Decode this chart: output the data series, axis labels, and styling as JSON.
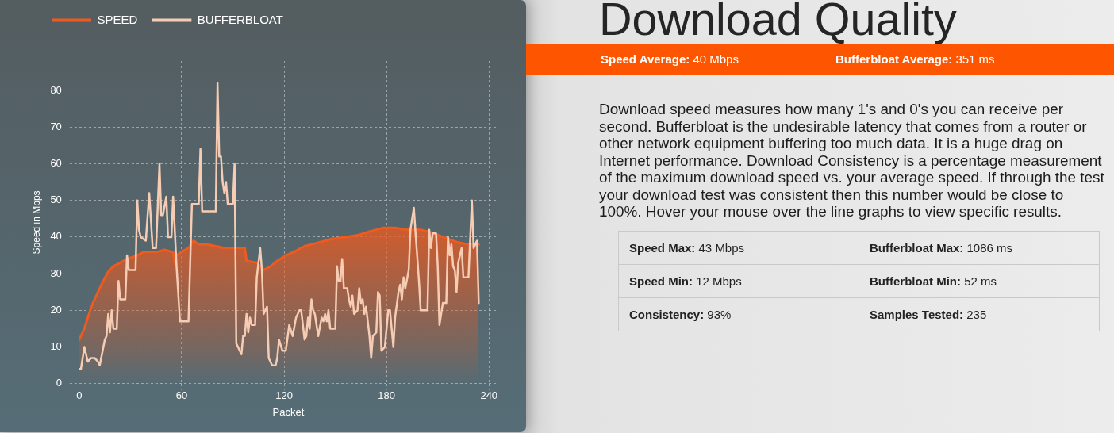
{
  "chart_data": [
    {
      "type": "line",
      "xlabel": "Packet",
      "ylabel": "Speed in Mbps",
      "xlim": [
        0,
        245
      ],
      "xticks": [
        0,
        60,
        120,
        180,
        240
      ],
      "ylim": [
        0,
        88
      ],
      "yticks": [
        0,
        10,
        20,
        30,
        40,
        50,
        60,
        70,
        80
      ],
      "grid": true,
      "legend": "top left",
      "series": [
        {
          "name": "SPEED",
          "type": "area",
          "color": "#ef5a1e",
          "x": [
            0,
            3,
            5,
            8,
            11,
            14,
            17,
            20,
            24,
            28,
            34,
            38,
            42,
            46,
            50,
            54,
            55,
            56,
            57,
            60,
            64,
            67,
            70,
            75,
            80,
            85,
            90,
            96,
            97,
            98,
            104,
            108,
            112,
            116,
            121,
            126,
            132,
            140,
            148,
            156,
            163,
            170,
            178,
            185,
            192,
            200,
            208,
            213,
            216,
            222,
            228,
            234
          ],
          "values": [
            12,
            15,
            18,
            22,
            25,
            28,
            30.5,
            32,
            33,
            34,
            35,
            36,
            36,
            36,
            36.5,
            36,
            36,
            33,
            35,
            36,
            37,
            39,
            38,
            38,
            37.5,
            37,
            37,
            37,
            37,
            33.5,
            33,
            31,
            32,
            33.5,
            35,
            36,
            37.5,
            38.5,
            39.5,
            40,
            40.5,
            41.5,
            42.5,
            42.5,
            42,
            42,
            41,
            40,
            39.5,
            38.5,
            38,
            38
          ]
        },
        {
          "name": "BUFFERBLOAT",
          "type": "line",
          "color": "#f6cdb4",
          "x": [
            0,
            1,
            3,
            5,
            7,
            9,
            11,
            12,
            15,
            16,
            17,
            18,
            19,
            20,
            22,
            23,
            24,
            27,
            28,
            29,
            33,
            34,
            35,
            36,
            39,
            41,
            43,
            45,
            47,
            48,
            49,
            51,
            52,
            54,
            55,
            57,
            59,
            64,
            66,
            70,
            71,
            72,
            80,
            81,
            82,
            83,
            84,
            85,
            86,
            87,
            90,
            91,
            92,
            95,
            96,
            97,
            98,
            99,
            100,
            101,
            103,
            104,
            106,
            107,
            108,
            110,
            111,
            113,
            115,
            116,
            117,
            119,
            121,
            123,
            125,
            127,
            129,
            130,
            132,
            133,
            134,
            135,
            136,
            137,
            138,
            140,
            142,
            143,
            144,
            145,
            146,
            147,
            150,
            151,
            152,
            153,
            154,
            155,
            157,
            158,
            159,
            160,
            161,
            163,
            164,
            165,
            166,
            167,
            168,
            170,
            171,
            172,
            174,
            175,
            176,
            177,
            179,
            181,
            182,
            184,
            185,
            187,
            188,
            189,
            190,
            191,
            193,
            194,
            196,
            197,
            199,
            200,
            204,
            205,
            206,
            207,
            209,
            210,
            211,
            213,
            215,
            216,
            217,
            218,
            219,
            220,
            221,
            222,
            224,
            225,
            228,
            230,
            231,
            232,
            233,
            234
          ],
          "values": [
            4,
            4,
            10,
            6,
            7,
            7,
            6,
            5,
            12,
            13,
            19,
            14,
            20,
            15,
            15,
            28,
            23,
            23,
            35,
            31,
            31,
            50,
            42,
            40,
            39,
            52,
            37,
            37,
            60,
            46,
            46,
            51,
            40,
            40,
            51,
            32,
            17,
            17,
            49,
            49,
            64,
            47,
            47,
            82,
            62,
            62,
            55,
            52,
            55,
            49,
            49,
            60,
            11,
            8,
            13,
            13,
            19,
            14,
            18,
            16,
            16,
            29,
            37,
            31,
            19,
            21,
            7,
            5,
            5,
            7,
            12,
            9,
            9,
            16,
            13,
            18,
            20,
            20,
            12,
            13,
            18,
            15,
            23,
            20,
            19,
            13,
            18,
            17,
            19,
            17,
            20,
            15,
            15,
            32,
            28,
            28,
            34,
            26,
            26,
            23,
            21,
            24,
            19,
            20,
            26,
            22,
            23,
            19,
            21,
            13,
            7,
            13,
            14,
            25,
            24,
            9,
            10,
            20,
            20,
            10,
            18,
            25,
            27,
            23,
            29,
            26,
            31,
            42,
            48,
            41,
            28,
            20,
            20,
            42,
            37,
            41,
            41,
            32,
            16,
            22,
            22,
            40,
            35,
            38,
            32,
            31,
            25,
            33,
            37,
            29,
            29,
            50,
            37,
            38,
            39,
            22
          ]
        }
      ]
    },
    {
      "type": "other",
      "title": "Download Quality",
      "annotations": [
        "Speed Average: 40 Mbps",
        "Bufferbloat Average: 351 ms",
        "Download speed measures how many 1's and 0's you can receive per second. Bufferbloat is the undesirable latency that comes from a router or other network equipment buffering too much data. It is a huge drag on Internet performance. Download Consistency is a percentage measurement of the maximum download speed vs. your average speed. If through the test your download test was consistent then this number would be close to 100%. Hover your mouse over the line graphs to view specific results.",
        "Speed Max: 43 Mbps",
        "Bufferbloat Max: 1086 ms",
        "Speed Min: 12 Mbps",
        "Bufferbloat Min: 52 ms",
        "Consistency: 93%",
        "Samples Tested: 235"
      ]
    }
  ]
}
